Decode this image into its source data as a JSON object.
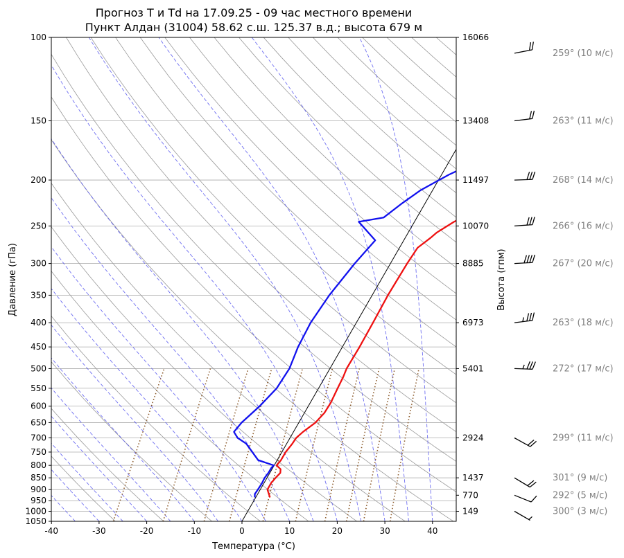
{
  "chart_data": {
    "type": "line",
    "subtype": "skew-t log-p diagram",
    "title_line1": "Прогноз T и Td на 17.09.25 - 09 час местного времени",
    "title_line2": "Пункт Алдан (31004) 58.62 с.ш. 125.37 в.д.; высота 679 м",
    "xlabel": "Температура (°C)",
    "ylabel": "Давление (гПа)",
    "y2label": "Высота (гпм)",
    "xlim": [
      -40,
      45
    ],
    "ylim": [
      1050,
      100
    ],
    "yscale": "log",
    "x_ticks": [
      -40,
      -30,
      -20,
      -10,
      0,
      10,
      20,
      30,
      40
    ],
    "y_ticks": [
      100,
      150,
      200,
      250,
      300,
      350,
      400,
      450,
      500,
      550,
      600,
      650,
      700,
      750,
      800,
      850,
      900,
      950,
      1000,
      1050
    ],
    "height_ticks": [
      {
        "p": 100,
        "label": "16066"
      },
      {
        "p": 150,
        "label": "13408"
      },
      {
        "p": 200,
        "label": "11497"
      },
      {
        "p": 250,
        "label": "10070"
      },
      {
        "p": 300,
        "label": "8885"
      },
      {
        "p": 400,
        "label": "6973"
      },
      {
        "p": 500,
        "label": "5401"
      },
      {
        "p": 700,
        "label": "2924"
      },
      {
        "p": 850,
        "label": "1437"
      },
      {
        "p": 925,
        "label": "770"
      },
      {
        "p": 1000,
        "label": "149"
      }
    ],
    "series": [
      {
        "role": "temperature",
        "color": "#ee1111",
        "points": [
          [
            935,
            3.0
          ],
          [
            900,
            1.5
          ],
          [
            870,
            1.5
          ],
          [
            850,
            1.8
          ],
          [
            830,
            2.2
          ],
          [
            815,
            1.8
          ],
          [
            800,
            0.5
          ],
          [
            780,
            0.8
          ],
          [
            750,
            0.8
          ],
          [
            720,
            1.2
          ],
          [
            700,
            1.3
          ],
          [
            680,
            2.0
          ],
          [
            650,
            3.5
          ],
          [
            620,
            4.2
          ],
          [
            590,
            4.3
          ],
          [
            550,
            4.0
          ],
          [
            520,
            3.8
          ],
          [
            500,
            3.5
          ],
          [
            450,
            3.6
          ],
          [
            400,
            3.5
          ],
          [
            350,
            3.3
          ],
          [
            300,
            3.5
          ],
          [
            278,
            3.8
          ],
          [
            265,
            5.3
          ],
          [
            258,
            6.0
          ],
          [
            245,
            8.3
          ],
          [
            228,
            12.8
          ],
          [
            220,
            14.5
          ],
          [
            210,
            15.7
          ],
          [
            200,
            17.0
          ],
          [
            185,
            20.0
          ],
          [
            175,
            21.5
          ],
          [
            170,
            22.0
          ],
          [
            160,
            23.5
          ],
          [
            150,
            25.0
          ],
          [
            140,
            26.5
          ],
          [
            135,
            27.5
          ],
          [
            125,
            28.0
          ],
          [
            115,
            29.0
          ],
          [
            105,
            30.0
          ],
          [
            100,
            30.5
          ]
        ]
      },
      {
        "role": "dewpoint",
        "color": "#1111ee",
        "points": [
          [
            935,
            -0.2
          ],
          [
            920,
            -0.6
          ],
          [
            900,
            -0.5
          ],
          [
            875,
            -0.4
          ],
          [
            850,
            -0.5
          ],
          [
            830,
            -0.3
          ],
          [
            810,
            -0.3
          ],
          [
            800,
            -0.1
          ],
          [
            780,
            -4.0
          ],
          [
            720,
            -8.5
          ],
          [
            700,
            -11.0
          ],
          [
            680,
            -12.5
          ],
          [
            650,
            -12.0
          ],
          [
            600,
            -10.2
          ],
          [
            550,
            -8.8
          ],
          [
            500,
            -8.5
          ],
          [
            450,
            -9.3
          ],
          [
            400,
            -9.6
          ],
          [
            350,
            -9.0
          ],
          [
            300,
            -7.5
          ],
          [
            268,
            -6.0
          ],
          [
            245,
            -11.7
          ],
          [
            240,
            -7.0
          ],
          [
            225,
            -5.0
          ],
          [
            210,
            -2.5
          ],
          [
            195,
            1.5
          ],
          [
            185,
            5.0
          ],
          [
            170,
            6.0
          ],
          [
            150,
            7.0
          ],
          [
            140,
            9.0
          ],
          [
            120,
            11.0
          ],
          [
            110,
            12.5
          ],
          [
            100,
            14.5
          ]
        ]
      }
    ],
    "reference_lines": {
      "isobars": "grey solid horizontal lines at each labelled pressure",
      "dry_adiabats": "grey solid curves",
      "moist_adiabats": "blue dashed curves",
      "mixing_ratio": "brown dotted lines (lower troposphere)",
      "zero_isotherm": "black solid skewed line"
    },
    "wind_profile": [
      {
        "p": 108,
        "dir": 259,
        "speed": 10,
        "label": "259° (10 м/с)"
      },
      {
        "p": 150,
        "dir": 263,
        "speed": 11,
        "label": "263° (11 м/с)"
      },
      {
        "p": 200,
        "dir": 268,
        "speed": 14,
        "label": "268° (14 м/с)"
      },
      {
        "p": 250,
        "dir": 266,
        "speed": 16,
        "label": "266° (16 м/с)"
      },
      {
        "p": 300,
        "dir": 267,
        "speed": 20,
        "label": "267° (20 м/с)"
      },
      {
        "p": 400,
        "dir": 263,
        "speed": 18,
        "label": "263° (18 м/с)"
      },
      {
        "p": 500,
        "dir": 272,
        "speed": 17,
        "label": "272° (17 м/с)"
      },
      {
        "p": 700,
        "dir": 299,
        "speed": 11,
        "label": "299° (11 м/с)"
      },
      {
        "p": 850,
        "dir": 301,
        "speed": 9,
        "label": "301° (9 м/с)"
      },
      {
        "p": 925,
        "dir": 292,
        "speed": 5,
        "label": "292° (5 м/с)"
      },
      {
        "p": 1000,
        "dir": 300,
        "speed": 3,
        "label": "300° (3 м/с)"
      }
    ]
  }
}
